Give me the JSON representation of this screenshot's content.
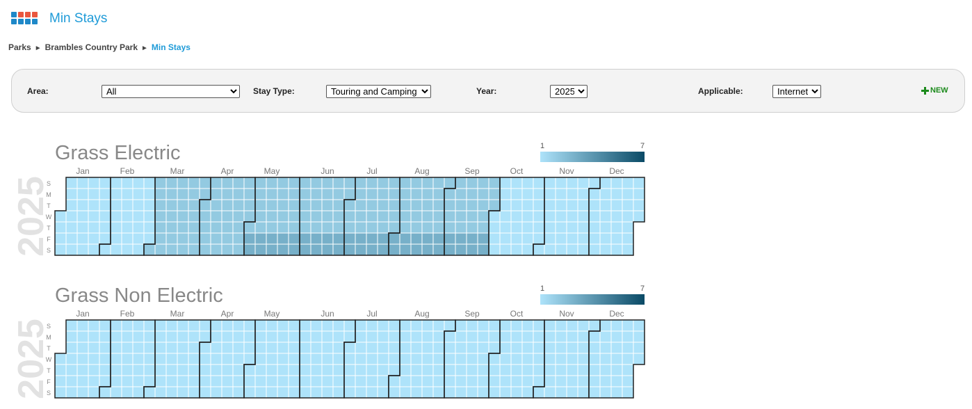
{
  "header": {
    "title": "Min Stays"
  },
  "breadcrumb": {
    "items": [
      "Parks",
      "Brambles Country Park",
      "Min Stays"
    ],
    "separator": "►"
  },
  "filters": [
    {
      "label": "Area:",
      "value": "All"
    },
    {
      "label": "Stay Type:",
      "value": "Touring and Camping"
    },
    {
      "label": "Year:",
      "value": "2025"
    },
    {
      "label": "Applicable:",
      "value": "Internet"
    }
  ],
  "new_button": "NEW",
  "calendars": [
    {
      "title": "Grass Electric",
      "year": 2025,
      "legend": {
        "min": 1,
        "max": 7,
        "colors": [
          "#aee3fa",
          "#0a4a66"
        ]
      },
      "weekdays": [
        "S",
        "M",
        "T",
        "W",
        "T",
        "F",
        "S"
      ],
      "months": [
        {
          "label": "Jan",
          "values": [
            1,
            1,
            1,
            1,
            1,
            1,
            1,
            1,
            1,
            1,
            1,
            1,
            1,
            1,
            1,
            1,
            1,
            1,
            1,
            1,
            1,
            1,
            1,
            1,
            1,
            1,
            1,
            1,
            1,
            1,
            1
          ]
        },
        {
          "label": "Feb",
          "values": [
            1,
            1,
            1,
            1,
            1,
            1,
            1,
            1,
            1,
            1,
            1,
            1,
            1,
            1,
            1,
            1,
            1,
            1,
            1,
            1,
            1,
            1,
            1,
            1,
            1,
            1,
            1,
            1
          ]
        },
        {
          "label": "Mar",
          "values": [
            2,
            2,
            2,
            2,
            2,
            2,
            2,
            2,
            2,
            2,
            2,
            2,
            2,
            2,
            2,
            2,
            2,
            2,
            2,
            2,
            2,
            2,
            2,
            2,
            2,
            2,
            2,
            2,
            2,
            2,
            2
          ]
        },
        {
          "label": "Apr",
          "values": [
            2,
            2,
            2,
            2,
            2,
            2,
            2,
            2,
            2,
            2,
            2,
            2,
            2,
            2,
            2,
            2,
            2,
            2,
            2,
            2,
            2,
            2,
            2,
            2,
            2,
            2,
            2,
            2,
            2,
            2
          ]
        },
        {
          "label": "May",
          "values": [
            2,
            3,
            3,
            2,
            2,
            2,
            2,
            2,
            3,
            3,
            2,
            2,
            2,
            2,
            2,
            3,
            3,
            2,
            2,
            2,
            2,
            2,
            3,
            3,
            2,
            2,
            2,
            2,
            2,
            3,
            3
          ]
        },
        {
          "label": "Jun",
          "values": [
            2,
            2,
            2,
            2,
            2,
            3,
            3,
            2,
            2,
            2,
            2,
            2,
            3,
            3,
            2,
            2,
            2,
            2,
            2,
            3,
            3,
            2,
            2,
            2,
            2,
            2,
            3,
            3,
            2,
            2
          ]
        },
        {
          "label": "Jul",
          "values": [
            2,
            2,
            2,
            3,
            3,
            2,
            2,
            2,
            2,
            2,
            3,
            3,
            2,
            2,
            2,
            2,
            2,
            3,
            3,
            2,
            2,
            2,
            2,
            2,
            3,
            3,
            2,
            2,
            2,
            2,
            2
          ]
        },
        {
          "label": "Aug",
          "values": [
            3,
            3,
            2,
            2,
            2,
            2,
            2,
            3,
            3,
            2,
            2,
            2,
            2,
            2,
            3,
            3,
            2,
            2,
            2,
            2,
            2,
            3,
            3,
            2,
            2,
            2,
            2,
            2,
            3,
            3,
            2
          ]
        },
        {
          "label": "Sep",
          "values": [
            2,
            2,
            2,
            2,
            3,
            3,
            2,
            2,
            2,
            2,
            2,
            3,
            3,
            2,
            2,
            2,
            2,
            2,
            3,
            3,
            2,
            2,
            2,
            2,
            2,
            3,
            3,
            2,
            2,
            2
          ]
        },
        {
          "label": "Oct",
          "values": [
            1,
            1,
            1,
            1,
            1,
            1,
            1,
            1,
            1,
            1,
            1,
            1,
            1,
            1,
            1,
            1,
            1,
            1,
            1,
            1,
            1,
            1,
            1,
            1,
            1,
            1,
            1,
            1,
            1,
            1,
            1
          ]
        },
        {
          "label": "Nov",
          "values": [
            1,
            1,
            1,
            1,
            1,
            1,
            1,
            1,
            1,
            1,
            1,
            1,
            1,
            1,
            1,
            1,
            1,
            1,
            1,
            1,
            1,
            1,
            1,
            1,
            1,
            1,
            1,
            1,
            1,
            1
          ]
        },
        {
          "label": "Dec",
          "values": [
            1,
            1,
            1,
            1,
            1,
            1,
            1,
            1,
            1,
            1,
            1,
            1,
            1,
            1,
            1,
            1,
            1,
            1,
            1,
            1,
            1,
            1,
            1,
            1,
            1,
            1,
            1,
            1,
            1,
            1,
            1
          ]
        }
      ]
    },
    {
      "title": "Grass Non Electric",
      "year": 2025,
      "legend": {
        "min": 1,
        "max": 7,
        "colors": [
          "#aee3fa",
          "#0a4a66"
        ]
      },
      "weekdays": [
        "S",
        "M",
        "T",
        "W",
        "T",
        "F",
        "S"
      ],
      "months": [
        {
          "label": "Jan",
          "values": [
            1,
            1,
            1,
            1,
            1,
            1,
            1,
            1,
            1,
            1,
            1,
            1,
            1,
            1,
            1,
            1,
            1,
            1,
            1,
            1,
            1,
            1,
            1,
            1,
            1,
            1,
            1,
            1,
            1,
            1,
            1
          ]
        },
        {
          "label": "Feb",
          "values": [
            1,
            1,
            1,
            1,
            1,
            1,
            1,
            1,
            1,
            1,
            1,
            1,
            1,
            1,
            1,
            1,
            1,
            1,
            1,
            1,
            1,
            1,
            1,
            1,
            1,
            1,
            1,
            1
          ]
        },
        {
          "label": "Mar",
          "values": [
            1,
            1,
            1,
            1,
            1,
            1,
            1,
            1,
            1,
            1,
            1,
            1,
            1,
            1,
            1,
            1,
            1,
            1,
            1,
            1,
            1,
            1,
            1,
            1,
            1,
            1,
            1,
            1,
            1,
            1,
            1
          ]
        },
        {
          "label": "Apr",
          "values": [
            1,
            1,
            1,
            1,
            1,
            1,
            1,
            1,
            1,
            1,
            1,
            1,
            1,
            1,
            1,
            1,
            1,
            1,
            1,
            1,
            1,
            1,
            1,
            1,
            1,
            1,
            1,
            1,
            1,
            1
          ]
        },
        {
          "label": "May",
          "values": [
            1,
            1,
            1,
            1,
            1,
            1,
            1,
            1,
            1,
            1,
            1,
            1,
            1,
            1,
            1,
            1,
            1,
            1,
            1,
            1,
            1,
            1,
            1,
            1,
            1,
            1,
            1,
            1,
            1,
            1,
            1
          ]
        },
        {
          "label": "Jun",
          "values": [
            1,
            1,
            1,
            1,
            1,
            1,
            1,
            1,
            1,
            1,
            1,
            1,
            1,
            1,
            1,
            1,
            1,
            1,
            1,
            1,
            1,
            1,
            1,
            1,
            1,
            1,
            1,
            1,
            1,
            1
          ]
        },
        {
          "label": "Jul",
          "values": [
            1,
            1,
            1,
            1,
            1,
            1,
            1,
            1,
            1,
            1,
            1,
            1,
            1,
            1,
            1,
            1,
            1,
            1,
            1,
            1,
            1,
            1,
            1,
            1,
            1,
            1,
            1,
            1,
            1,
            1,
            1
          ]
        },
        {
          "label": "Aug",
          "values": [
            1,
            1,
            1,
            1,
            1,
            1,
            1,
            1,
            1,
            1,
            1,
            1,
            1,
            1,
            1,
            1,
            1,
            1,
            1,
            1,
            1,
            1,
            1,
            1,
            1,
            1,
            1,
            1,
            1,
            1,
            1
          ]
        },
        {
          "label": "Sep",
          "values": [
            1,
            1,
            1,
            1,
            1,
            1,
            1,
            1,
            1,
            1,
            1,
            1,
            1,
            1,
            1,
            1,
            1,
            1,
            1,
            1,
            1,
            1,
            1,
            1,
            1,
            1,
            1,
            1,
            1,
            1
          ]
        },
        {
          "label": "Oct",
          "values": [
            1,
            1,
            1,
            1,
            1,
            1,
            1,
            1,
            1,
            1,
            1,
            1,
            1,
            1,
            1,
            1,
            1,
            1,
            1,
            1,
            1,
            1,
            1,
            1,
            1,
            1,
            1,
            1,
            1,
            1,
            1
          ]
        },
        {
          "label": "Nov",
          "values": [
            1,
            1,
            1,
            1,
            1,
            1,
            1,
            1,
            1,
            1,
            1,
            1,
            1,
            1,
            1,
            1,
            1,
            1,
            1,
            1,
            1,
            1,
            1,
            1,
            1,
            1,
            1,
            1,
            1,
            1
          ]
        },
        {
          "label": "Dec",
          "values": [
            1,
            1,
            1,
            1,
            1,
            1,
            1,
            1,
            1,
            1,
            1,
            1,
            1,
            1,
            1,
            1,
            1,
            1,
            1,
            1,
            1,
            1,
            1,
            1,
            1,
            1,
            1,
            1,
            1,
            1,
            1
          ]
        }
      ]
    }
  ]
}
